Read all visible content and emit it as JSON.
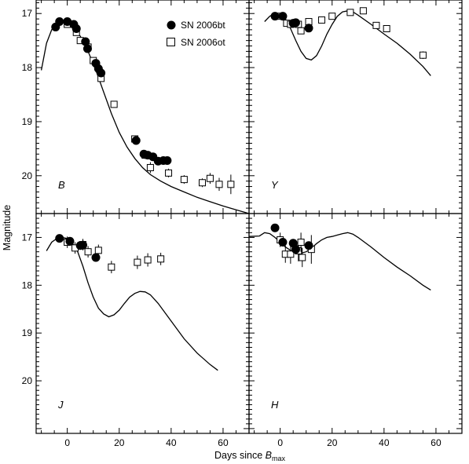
{
  "chart_data": {
    "type": "scatter",
    "xlabel": "Days since ",
    "xlabel_italic": "B",
    "xlabel_sub": "max",
    "ylabel": "Magnitude",
    "xlim": [
      -12,
      70
    ],
    "x_ticks": [
      "0",
      "20",
      "40",
      "60"
    ],
    "y_reversed": true,
    "legend_position": "top-right of B panel",
    "legend": [
      {
        "label": "SN 2006bt",
        "marker": "filled-circle"
      },
      {
        "label": "SN 2006ot",
        "marker": "open-square"
      }
    ],
    "panels": [
      {
        "band": "B",
        "ylim": [
          20.7,
          16.75
        ],
        "y_ticks": [
          "17",
          "18",
          "19",
          "20"
        ],
        "series": [
          {
            "name": "SN 2006bt",
            "points": [
              [
                -4.5,
                17.25
              ],
              [
                -3,
                17.15
              ],
              [
                0,
                17.15
              ],
              [
                2.5,
                17.2
              ],
              [
                3.5,
                17.28
              ],
              [
                7,
                17.52
              ],
              [
                7.8,
                17.65
              ],
              [
                11,
                17.92
              ],
              [
                12,
                18.02
              ],
              [
                13,
                18.1
              ],
              [
                26.5,
                19.35
              ],
              [
                29.5,
                19.6
              ],
              [
                31,
                19.62
              ],
              [
                33,
                19.65
              ],
              [
                35,
                19.73
              ],
              [
                37,
                19.72
              ],
              [
                38.5,
                19.72
              ]
            ]
          },
          {
            "name": "SN 2006ot",
            "points": [
              [
                0,
                17.2,
                0.05
              ],
              [
                3.5,
                17.35,
                0.05
              ],
              [
                5,
                17.5,
                0.05
              ],
              [
                8,
                17.62,
                0.05
              ],
              [
                10,
                17.87,
                0.05
              ],
              [
                13,
                18.2,
                0.05
              ],
              [
                18,
                18.68,
                0.05
              ],
              [
                26,
                19.32,
                0.05
              ],
              [
                30,
                19.62,
                0.07
              ],
              [
                32,
                19.85,
                0.1
              ],
              [
                39,
                19.95,
                0.08
              ],
              [
                45,
                20.07,
                0.08
              ],
              [
                52,
                20.13,
                0.08
              ],
              [
                55,
                20.05,
                0.1
              ],
              [
                58.5,
                20.16,
                0.12
              ],
              [
                63,
                20.16,
                0.18
              ]
            ]
          },
          {
            "name": "template",
            "curve": [
              [
                -10,
                18.05
              ],
              [
                -8,
                17.55
              ],
              [
                -6,
                17.3
              ],
              [
                -4,
                17.19
              ],
              [
                -2,
                17.15
              ],
              [
                0,
                17.17
              ],
              [
                2,
                17.25
              ],
              [
                5,
                17.42
              ],
              [
                8,
                17.7
              ],
              [
                11,
                18.05
              ],
              [
                14,
                18.45
              ],
              [
                17,
                18.85
              ],
              [
                20,
                19.2
              ],
              [
                23,
                19.47
              ],
              [
                26,
                19.68
              ],
              [
                29,
                19.85
              ],
              [
                32,
                19.98
              ],
              [
                36,
                20.1
              ],
              [
                40,
                20.2
              ],
              [
                45,
                20.3
              ],
              [
                50,
                20.4
              ],
              [
                55,
                20.48
              ],
              [
                60,
                20.56
              ],
              [
                65,
                20.63
              ],
              [
                70,
                20.7
              ]
            ]
          }
        ]
      },
      {
        "band": "Y",
        "ylim": [
          20.7,
          16.75
        ],
        "y_ticks": [
          "17",
          "18",
          "19",
          "20"
        ],
        "series": [
          {
            "name": "SN 2006bt",
            "points": [
              [
                -2,
                17.05
              ],
              [
                1,
                17.05
              ],
              [
                5,
                17.18
              ],
              [
                6,
                17.17
              ],
              [
                11,
                17.27
              ]
            ]
          },
          {
            "name": "SN 2006ot",
            "points": [
              [
                0,
                17.05,
                0.05
              ],
              [
                2.5,
                17.18,
                0.05
              ],
              [
                4,
                17.2,
                0.05
              ],
              [
                7,
                17.2,
                0.05
              ],
              [
                8,
                17.32,
                0.05
              ],
              [
                11,
                17.15,
                0.05
              ],
              [
                16,
                17.12,
                0.05
              ],
              [
                20,
                17.05,
                0.05
              ],
              [
                27,
                16.98,
                0.05
              ],
              [
                32,
                16.95,
                0.05
              ],
              [
                37,
                17.22,
                0.05
              ],
              [
                41,
                17.28,
                0.05
              ],
              [
                55,
                17.77,
                0.07
              ]
            ]
          },
          {
            "name": "template",
            "curve": [
              [
                -6,
                17.15
              ],
              [
                -4,
                17.05
              ],
              [
                -2,
                17.0
              ],
              [
                0,
                17.02
              ],
              [
                2,
                17.1
              ],
              [
                4,
                17.28
              ],
              [
                6,
                17.5
              ],
              [
                8,
                17.7
              ],
              [
                10,
                17.83
              ],
              [
                12,
                17.86
              ],
              [
                14,
                17.78
              ],
              [
                16,
                17.6
              ],
              [
                18,
                17.38
              ],
              [
                20,
                17.2
              ],
              [
                22,
                17.05
              ],
              [
                24,
                16.97
              ],
              [
                26,
                16.95
              ],
              [
                28,
                16.97
              ],
              [
                30,
                17.03
              ],
              [
                35,
                17.2
              ],
              [
                40,
                17.38
              ],
              [
                45,
                17.55
              ],
              [
                50,
                17.75
              ],
              [
                55,
                17.98
              ],
              [
                58,
                18.15
              ]
            ]
          }
        ]
      },
      {
        "band": "J",
        "ylim": [
          21.1,
          16.5
        ],
        "y_ticks": [
          "17",
          "18",
          "19",
          "20"
        ],
        "series": [
          {
            "name": "SN 2006bt",
            "points": [
              [
                -3,
                17.02
              ],
              [
                1,
                17.08
              ],
              [
                5,
                17.17
              ],
              [
                6,
                17.16
              ],
              [
                11,
                17.42
              ]
            ]
          },
          {
            "name": "SN 2006ot",
            "points": [
              [
                0,
                17.1,
                0.12
              ],
              [
                3,
                17.22,
                0.12
              ],
              [
                6,
                17.15,
                0.12
              ],
              [
                8,
                17.3,
                0.12
              ],
              [
                12,
                17.27,
                0.12
              ],
              [
                17,
                17.62,
                0.13
              ],
              [
                27,
                17.52,
                0.14
              ],
              [
                31,
                17.47,
                0.14
              ],
              [
                36,
                17.45,
                0.13
              ]
            ]
          },
          {
            "name": "template",
            "curve": [
              [
                -8,
                17.28
              ],
              [
                -6,
                17.1
              ],
              [
                -4,
                17.02
              ],
              [
                -2,
                17.0
              ],
              [
                0,
                17.02
              ],
              [
                2,
                17.12
              ],
              [
                4,
                17.3
              ],
              [
                6,
                17.6
              ],
              [
                8,
                17.95
              ],
              [
                10,
                18.25
              ],
              [
                12,
                18.48
              ],
              [
                14,
                18.6
              ],
              [
                16,
                18.66
              ],
              [
                18,
                18.62
              ],
              [
                20,
                18.52
              ],
              [
                22,
                18.38
              ],
              [
                24,
                18.25
              ],
              [
                26,
                18.17
              ],
              [
                28,
                18.13
              ],
              [
                30,
                18.14
              ],
              [
                32,
                18.2
              ],
              [
                35,
                18.38
              ],
              [
                40,
                18.75
              ],
              [
                45,
                19.12
              ],
              [
                50,
                19.42
              ],
              [
                55,
                19.66
              ],
              [
                58,
                19.78
              ]
            ]
          }
        ]
      },
      {
        "band": "H",
        "ylim": [
          21.1,
          16.5
        ],
        "y_ticks": [
          "17",
          "18",
          "19",
          "20"
        ],
        "series": [
          {
            "name": "SN 2006bt",
            "points": [
              [
                -2,
                16.8
              ],
              [
                1,
                17.1
              ],
              [
                5,
                17.12
              ],
              [
                6,
                17.25
              ],
              [
                11,
                17.17
              ]
            ]
          },
          {
            "name": "SN 2006ot",
            "points": [
              [
                0,
                17.05,
                0.15
              ],
              [
                2,
                17.35,
                0.18
              ],
              [
                4,
                17.35,
                0.2
              ],
              [
                7,
                17.28,
                0.22
              ],
              [
                8,
                17.1,
                0.2
              ],
              [
                8.5,
                17.42,
                0.2
              ],
              [
                12,
                17.25,
                0.3
              ]
            ]
          },
          {
            "name": "template",
            "curve": [
              [
                -12,
                16.98
              ],
              [
                -8,
                16.97
              ],
              [
                -6,
                16.9
              ],
              [
                -4,
                16.92
              ],
              [
                -2,
                17.0
              ],
              [
                0,
                17.1
              ],
              [
                2,
                17.2
              ],
              [
                4,
                17.27
              ],
              [
                6,
                17.32
              ],
              [
                8,
                17.33
              ],
              [
                10,
                17.3
              ],
              [
                12,
                17.23
              ],
              [
                14,
                17.13
              ],
              [
                16,
                17.05
              ],
              [
                18,
                17.0
              ],
              [
                20,
                16.98
              ],
              [
                22,
                16.95
              ],
              [
                24,
                16.92
              ],
              [
                26,
                16.9
              ],
              [
                28,
                16.93
              ],
              [
                30,
                17.0
              ],
              [
                35,
                17.2
              ],
              [
                40,
                17.42
              ],
              [
                45,
                17.62
              ],
              [
                50,
                17.8
              ],
              [
                55,
                18.0
              ],
              [
                58,
                18.1
              ]
            ]
          }
        ]
      }
    ]
  }
}
